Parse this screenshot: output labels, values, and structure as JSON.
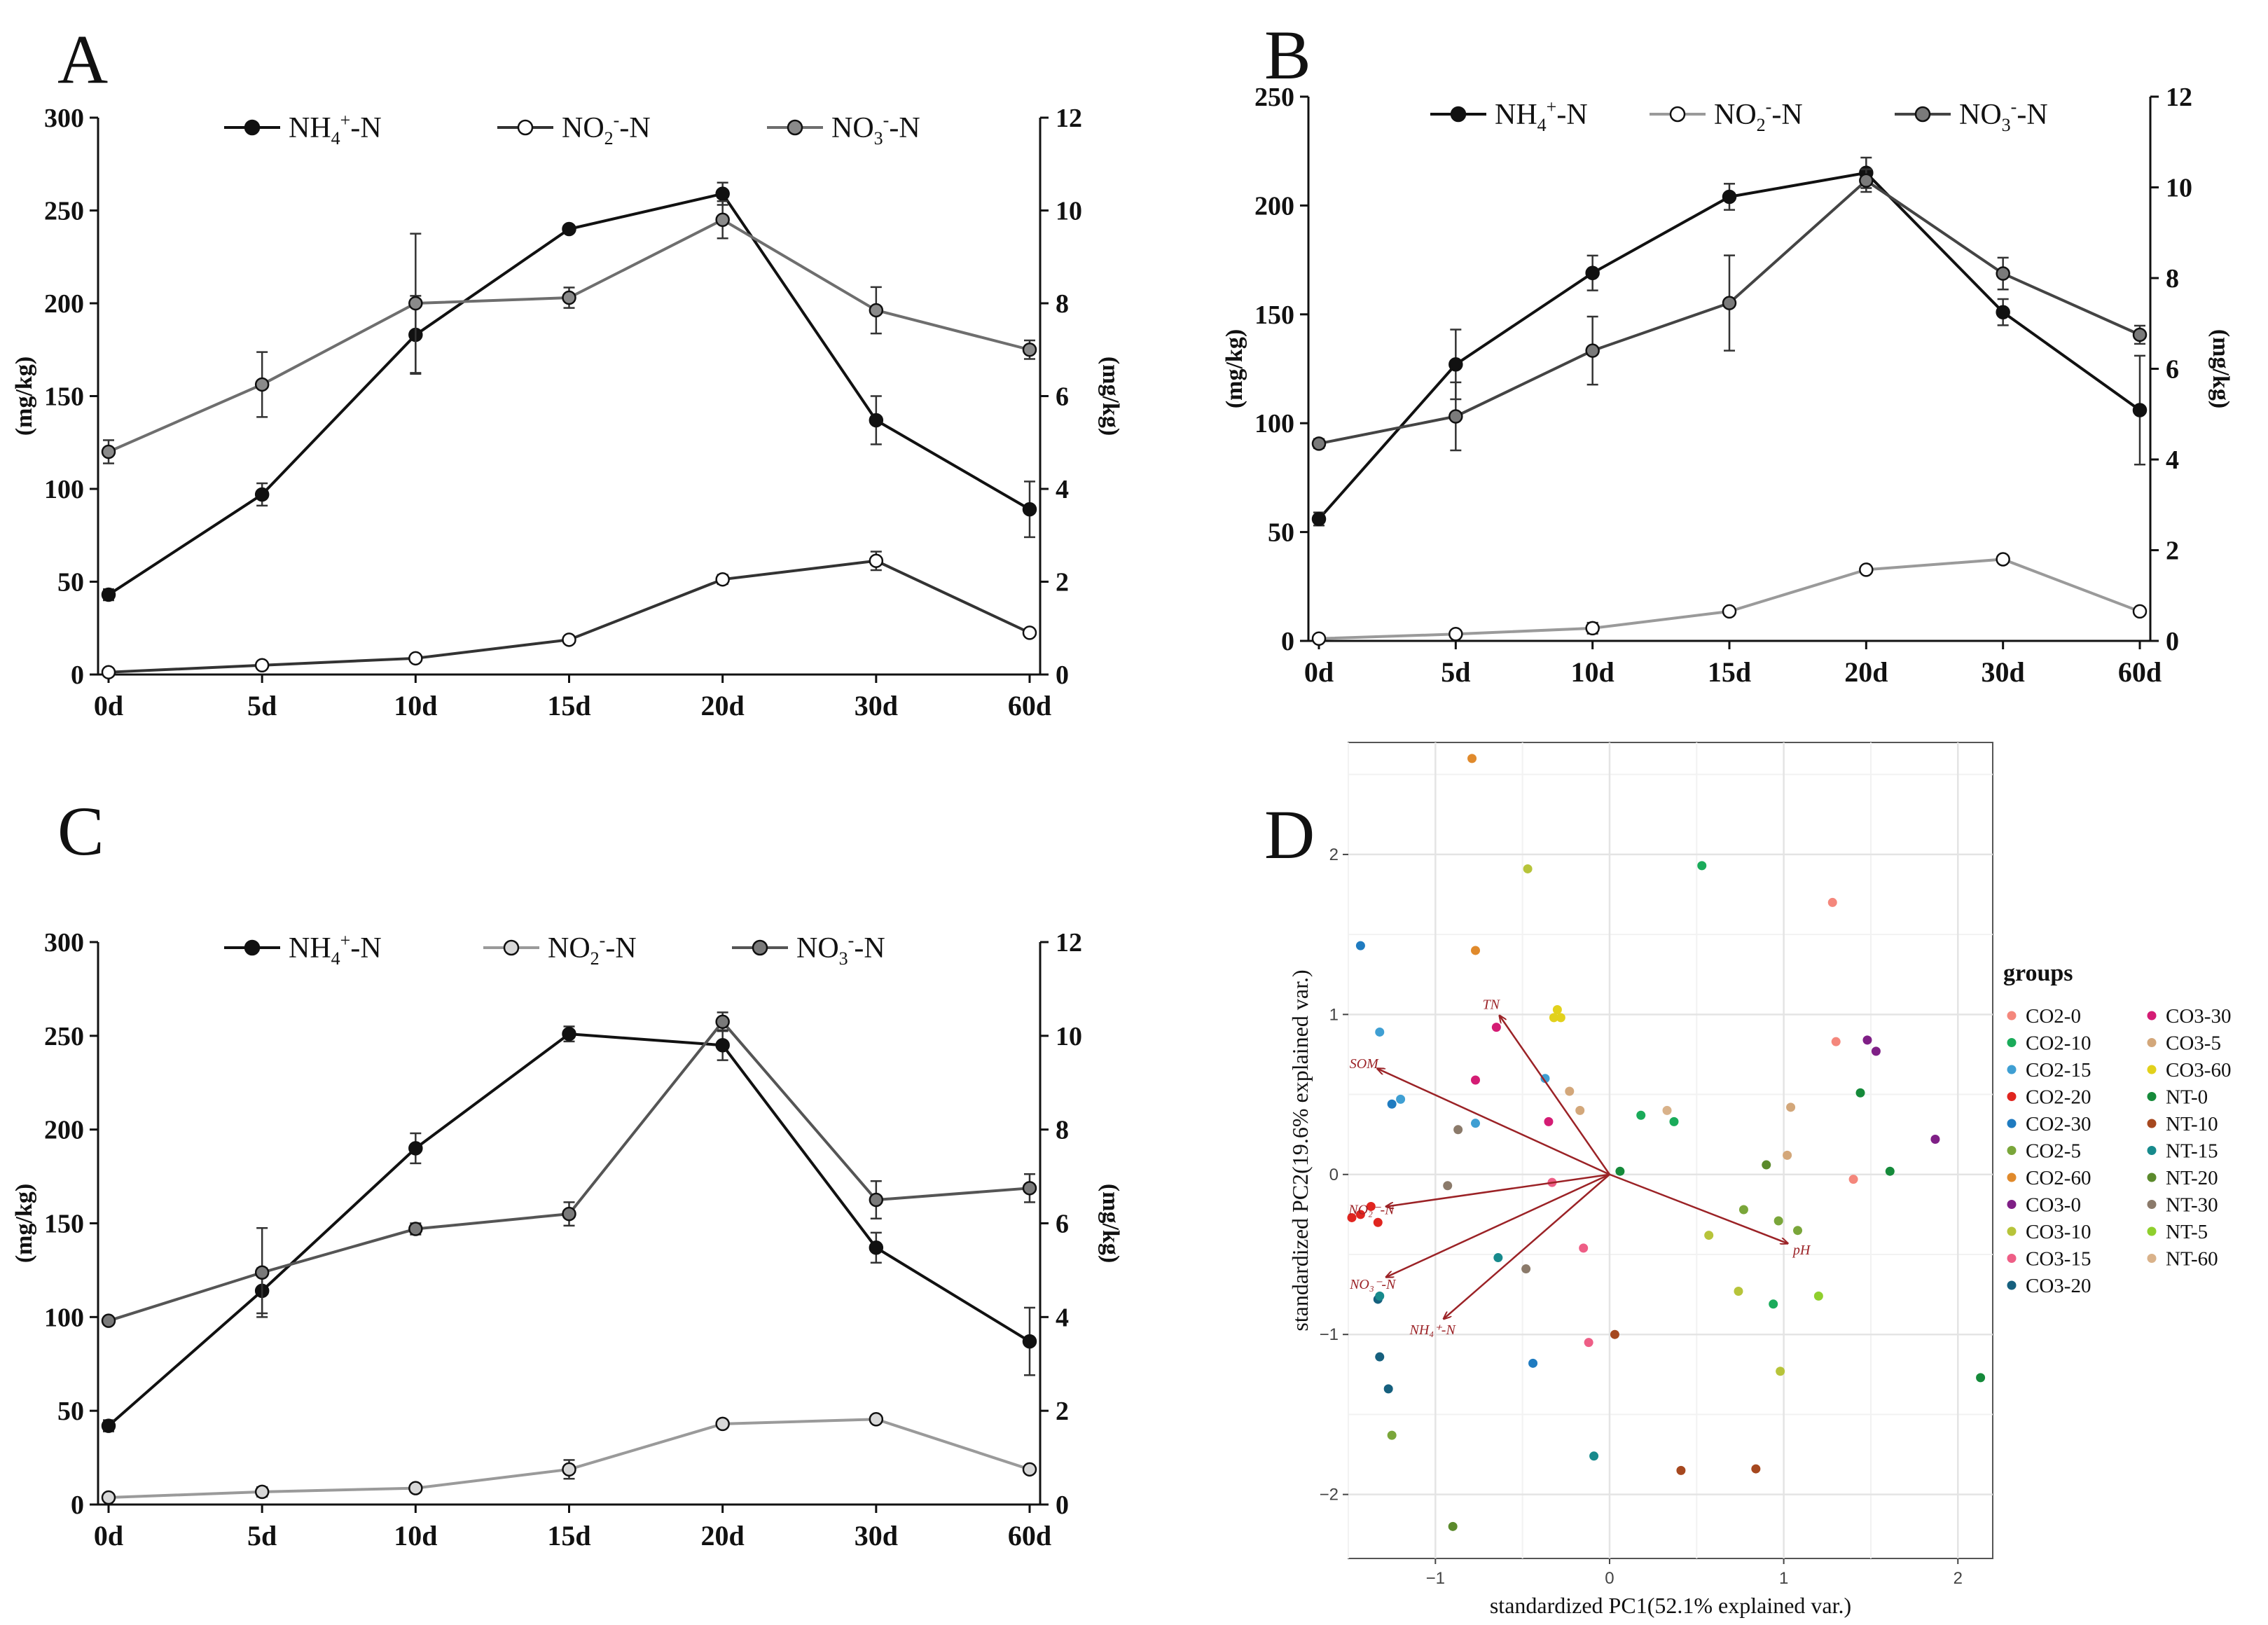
{
  "panels": [
    {
      "letter": "A",
      "type": "line",
      "categories": [
        "0d",
        "5d",
        "10d",
        "15d",
        "20d",
        "30d",
        "60d"
      ],
      "left_axis": {
        "label": "(mg/kg)",
        "min": 0,
        "max": 300,
        "ticks": [
          "0",
          "50",
          "100",
          "150",
          "200",
          "250",
          "300"
        ]
      },
      "right_axis": {
        "label": "(mg/kg)",
        "min": 0,
        "max": 12,
        "ticks": [
          "0",
          "2",
          "4",
          "6",
          "8",
          "10",
          "12"
        ]
      },
      "legend": [
        {
          "base": "NH",
          "sub": "4",
          "sup": "+",
          "tail": "-N"
        },
        {
          "base": "NO",
          "sub": "2",
          "sup": "-",
          "tail": "-N"
        },
        {
          "base": "NO",
          "sub": "3",
          "sup": "-",
          "tail": "-N"
        }
      ],
      "series": [
        {
          "name": "NH4+-N",
          "axis": "left",
          "color": "#111111",
          "marker_fill": "#111111",
          "values": [
            43,
            97,
            183,
            240,
            259,
            137,
            89
          ],
          "errors": [
            3,
            6,
            21,
            2,
            6,
            13,
            15
          ]
        },
        {
          "name": "NO2--N",
          "axis": "right",
          "color": "#333333",
          "marker_fill": "#ffffff",
          "values": [
            0.05,
            0.2,
            0.35,
            0.75,
            2.05,
            2.45,
            0.9
          ],
          "errors": [
            0.03,
            0.03,
            0.05,
            0.05,
            0.1,
            0.2,
            0.05
          ]
        },
        {
          "name": "NO3--N",
          "axis": "right",
          "color": "#6e6e6e",
          "marker_fill": "#8a8a8a",
          "values": [
            4.8,
            6.25,
            8.0,
            8.12,
            9.8,
            7.85,
            7.0
          ],
          "errors": [
            0.25,
            0.7,
            1.5,
            0.22,
            0.4,
            0.5,
            0.2
          ]
        }
      ]
    },
    {
      "letter": "B",
      "type": "line",
      "categories": [
        "0d",
        "5d",
        "10d",
        "15d",
        "20d",
        "30d",
        "60d"
      ],
      "left_axis": {
        "label": "(mg/kg)",
        "min": 0,
        "max": 250,
        "ticks": [
          "0",
          "50",
          "100",
          "150",
          "200",
          "250"
        ]
      },
      "right_axis": {
        "label": "(mg/kg)",
        "min": 0,
        "max": 12,
        "ticks": [
          "0",
          "2",
          "4",
          "6",
          "8",
          "10",
          "12"
        ]
      },
      "legend": [
        {
          "base": "NH",
          "sub": "4",
          "sup": "+",
          "tail": "-N"
        },
        {
          "base": "NO",
          "sub": "2",
          "sup": "-",
          "tail": "-N"
        },
        {
          "base": "NO",
          "sub": "3",
          "sup": "-",
          "tail": "-N"
        }
      ],
      "series": [
        {
          "name": "NH4+-N",
          "axis": "left",
          "color": "#111111",
          "marker_fill": "#111111",
          "values": [
            56,
            127,
            169,
            204,
            215,
            151,
            106
          ],
          "errors": [
            3,
            16,
            8,
            6,
            7,
            6,
            25
          ]
        },
        {
          "name": "NO2--N",
          "axis": "right",
          "color": "#9a9a9a",
          "marker_fill": "#ffffff",
          "values": [
            0.05,
            0.15,
            0.28,
            0.65,
            1.57,
            1.8,
            0.65
          ],
          "errors": [
            0.03,
            0.05,
            0.12,
            0.05,
            0.05,
            0.05,
            0.05
          ]
        },
        {
          "name": "NO3--N",
          "axis": "right",
          "color": "#444444",
          "marker_fill": "#7a7a7a",
          "values": [
            4.35,
            4.95,
            6.4,
            7.45,
            10.15,
            8.1,
            6.75
          ],
          "errors": [
            0.1,
            0.75,
            0.75,
            1.05,
            0.25,
            0.35,
            0.2
          ]
        }
      ]
    },
    {
      "letter": "C",
      "type": "line",
      "categories": [
        "0d",
        "5d",
        "10d",
        "15d",
        "20d",
        "30d",
        "60d"
      ],
      "left_axis": {
        "label": "(mg/kg)",
        "min": 0,
        "max": 300,
        "ticks": [
          "0",
          "50",
          "100",
          "150",
          "200",
          "250",
          "300"
        ]
      },
      "right_axis": {
        "label": "(mg/kg)",
        "min": 0,
        "max": 12,
        "ticks": [
          "0",
          "2",
          "4",
          "6",
          "8",
          "10",
          "12"
        ]
      },
      "legend": [
        {
          "base": "NH",
          "sub": "4",
          "sup": "+",
          "tail": "-N"
        },
        {
          "base": "NO",
          "sub": "2",
          "sup": "-",
          "tail": "-N"
        },
        {
          "base": "NO",
          "sub": "3",
          "sup": "-",
          "tail": "-N"
        }
      ],
      "series": [
        {
          "name": "NH4+-N",
          "axis": "left",
          "color": "#111111",
          "marker_fill": "#111111",
          "values": [
            42,
            114,
            190,
            251,
            245,
            137,
            87
          ],
          "errors": [
            3,
            12,
            8,
            4,
            8,
            8,
            18
          ]
        },
        {
          "name": "NO2--N",
          "axis": "right",
          "color": "#9a9a9a",
          "marker_fill": "#d8d8d8",
          "values": [
            0.15,
            0.27,
            0.35,
            0.75,
            1.72,
            1.82,
            0.75
          ],
          "errors": [
            0.05,
            0.1,
            0.05,
            0.2,
            0.08,
            0.05,
            0.05
          ]
        },
        {
          "name": "NO3--N",
          "axis": "right",
          "color": "#555555",
          "marker_fill": "#7a7a7a",
          "values": [
            3.92,
            4.95,
            5.88,
            6.2,
            10.3,
            6.5,
            6.75
          ],
          "errors": [
            0.05,
            0.95,
            0.12,
            0.25,
            0.2,
            0.4,
            0.3
          ]
        }
      ]
    }
  ],
  "biplot": {
    "letter": "D",
    "type": "scatter",
    "xlabel": "standardized PC1(52.1% explained var.)",
    "ylabel": "standardized PC2(19.6% explained var.)",
    "xlim": [
      -1.5,
      2.2
    ],
    "ylim": [
      -2.4,
      2.7
    ],
    "x_ticks": [
      -1,
      0,
      1,
      2
    ],
    "y_ticks": [
      -2,
      -1,
      0,
      1,
      2
    ],
    "x_tick_labels": [
      "−1",
      "0",
      "1",
      "2"
    ],
    "y_tick_labels": [
      "−2",
      "−1",
      "0",
      "1",
      "2"
    ],
    "legend_title": "groups",
    "groups": [
      {
        "name": "CO2-0",
        "color": "#f4877c"
      },
      {
        "name": "CO2-10",
        "color": "#1aab5a"
      },
      {
        "name": "CO2-15",
        "color": "#3f9fd3"
      },
      {
        "name": "CO2-20",
        "color": "#e0251f"
      },
      {
        "name": "CO2-30",
        "color": "#1f7bc0"
      },
      {
        "name": "CO2-5",
        "color": "#7aa63a"
      },
      {
        "name": "CO2-60",
        "color": "#e08a2c"
      },
      {
        "name": "CO3-0",
        "color": "#7f1f86"
      },
      {
        "name": "CO3-10",
        "color": "#b7c43a"
      },
      {
        "name": "CO3-15",
        "color": "#ee5e86"
      },
      {
        "name": "CO3-20",
        "color": "#16607e"
      },
      {
        "name": "CO3-30",
        "color": "#d41c74"
      },
      {
        "name": "CO3-5",
        "color": "#d3a77a"
      },
      {
        "name": "CO3-60",
        "color": "#e2d11c"
      },
      {
        "name": "NT-0",
        "color": "#158a3a"
      },
      {
        "name": "NT-10",
        "color": "#a6481f"
      },
      {
        "name": "NT-15",
        "color": "#178a8c"
      },
      {
        "name": "NT-20",
        "color": "#5b8a2c"
      },
      {
        "name": "NT-30",
        "color": "#8b7a6a"
      },
      {
        "name": "NT-5",
        "color": "#8fcf2d"
      },
      {
        "name": "NT-60",
        "color": "#d9b28a"
      }
    ],
    "points": [
      {
        "group": "CO2-0",
        "x": 1.28,
        "y": 1.7
      },
      {
        "group": "CO2-0",
        "x": 1.3,
        "y": 0.83
      },
      {
        "group": "CO2-0",
        "x": 1.4,
        "y": -0.03
      },
      {
        "group": "CO2-10",
        "x": 0.53,
        "y": 1.93
      },
      {
        "group": "CO2-10",
        "x": 0.18,
        "y": 0.37
      },
      {
        "group": "CO2-10",
        "x": 0.37,
        "y": 0.33
      },
      {
        "group": "CO2-10",
        "x": 0.94,
        "y": -0.81
      },
      {
        "group": "CO2-15",
        "x": -1.32,
        "y": 0.89
      },
      {
        "group": "CO2-15",
        "x": -1.2,
        "y": 0.47
      },
      {
        "group": "CO2-15",
        "x": -0.77,
        "y": 0.32
      },
      {
        "group": "CO2-15",
        "x": -0.37,
        "y": 0.6
      },
      {
        "group": "CO2-20",
        "x": -1.43,
        "y": -0.25
      },
      {
        "group": "CO2-20",
        "x": -1.37,
        "y": -0.2
      },
      {
        "group": "CO2-20",
        "x": -1.33,
        "y": -0.3
      },
      {
        "group": "CO2-20",
        "x": -1.48,
        "y": -0.27
      },
      {
        "group": "CO2-30",
        "x": -1.43,
        "y": 1.43
      },
      {
        "group": "CO2-30",
        "x": -1.25,
        "y": 0.44
      },
      {
        "group": "CO2-30",
        "x": -0.44,
        "y": -1.18
      },
      {
        "group": "CO2-5",
        "x": 0.77,
        "y": -0.22
      },
      {
        "group": "CO2-5",
        "x": 1.08,
        "y": -0.35
      },
      {
        "group": "CO2-5",
        "x": 0.97,
        "y": -0.29
      },
      {
        "group": "CO2-5",
        "x": -1.25,
        "y": -1.63
      },
      {
        "group": "CO2-60",
        "x": -0.79,
        "y": 2.6
      },
      {
        "group": "CO2-60",
        "x": -0.77,
        "y": 1.4
      },
      {
        "group": "CO3-0",
        "x": 1.48,
        "y": 0.84
      },
      {
        "group": "CO3-0",
        "x": 1.53,
        "y": 0.77
      },
      {
        "group": "CO3-0",
        "x": 1.87,
        "y": 0.22
      },
      {
        "group": "CO3-10",
        "x": -0.47,
        "y": 1.91
      },
      {
        "group": "CO3-10",
        "x": 0.57,
        "y": -0.38
      },
      {
        "group": "CO3-10",
        "x": 0.74,
        "y": -0.73
      },
      {
        "group": "CO3-10",
        "x": 0.98,
        "y": -1.23
      },
      {
        "group": "CO3-15",
        "x": -0.33,
        "y": -0.05
      },
      {
        "group": "CO3-15",
        "x": -0.15,
        "y": -0.46
      },
      {
        "group": "CO3-15",
        "x": -0.12,
        "y": -1.05
      },
      {
        "group": "CO3-20",
        "x": -1.32,
        "y": -1.14
      },
      {
        "group": "CO3-20",
        "x": -1.27,
        "y": -1.34
      },
      {
        "group": "CO3-20",
        "x": -1.33,
        "y": -0.78
      },
      {
        "group": "CO3-30",
        "x": -0.65,
        "y": 0.92
      },
      {
        "group": "CO3-30",
        "x": -0.77,
        "y": 0.59
      },
      {
        "group": "CO3-30",
        "x": -0.35,
        "y": 0.33
      },
      {
        "group": "CO3-5",
        "x": -0.23,
        "y": 0.52
      },
      {
        "group": "CO3-5",
        "x": -0.17,
        "y": 0.4
      },
      {
        "group": "CO3-5",
        "x": 1.04,
        "y": 0.42
      },
      {
        "group": "CO3-5",
        "x": 1.02,
        "y": 0.12
      },
      {
        "group": "CO3-60",
        "x": -0.3,
        "y": 1.03
      },
      {
        "group": "CO3-60",
        "x": -0.28,
        "y": 0.98
      },
      {
        "group": "CO3-60",
        "x": -0.32,
        "y": 0.98
      },
      {
        "group": "NT-0",
        "x": 0.06,
        "y": 0.02
      },
      {
        "group": "NT-0",
        "x": 1.44,
        "y": 0.51
      },
      {
        "group": "NT-0",
        "x": 1.61,
        "y": 0.02
      },
      {
        "group": "NT-0",
        "x": 2.13,
        "y": -1.27
      },
      {
        "group": "NT-10",
        "x": 0.03,
        "y": -1.0
      },
      {
        "group": "NT-10",
        "x": 0.41,
        "y": -1.85
      },
      {
        "group": "NT-10",
        "x": 0.84,
        "y": -1.84
      },
      {
        "group": "NT-15",
        "x": -0.64,
        "y": -0.52
      },
      {
        "group": "NT-15",
        "x": -0.09,
        "y": -1.76
      },
      {
        "group": "NT-15",
        "x": -1.32,
        "y": -0.76
      },
      {
        "group": "NT-20",
        "x": 0.9,
        "y": 0.06
      },
      {
        "group": "NT-20",
        "x": -0.9,
        "y": -2.2
      },
      {
        "group": "NT-30",
        "x": -0.87,
        "y": 0.28
      },
      {
        "group": "NT-30",
        "x": -0.93,
        "y": -0.07
      },
      {
        "group": "NT-30",
        "x": -0.48,
        "y": -0.59
      },
      {
        "group": "NT-5",
        "x": 1.2,
        "y": -0.76
      },
      {
        "group": "NT-60",
        "x": 0.33,
        "y": 0.4
      }
    ],
    "vectors": [
      {
        "label": "TN",
        "x": -0.63,
        "y": 0.99
      },
      {
        "label": "SOM",
        "x": -1.33,
        "y": 0.66
      },
      {
        "label": "NO₂⁻-N",
        "x": -1.28,
        "y": -0.2
      },
      {
        "label": "NO₃⁻-N",
        "x": -1.28,
        "y": -0.64
      },
      {
        "label": "NH₄⁺-N",
        "x": -0.95,
        "y": -0.9
      },
      {
        "label": "pH",
        "x": 1.02,
        "y": -0.43
      }
    ]
  }
}
